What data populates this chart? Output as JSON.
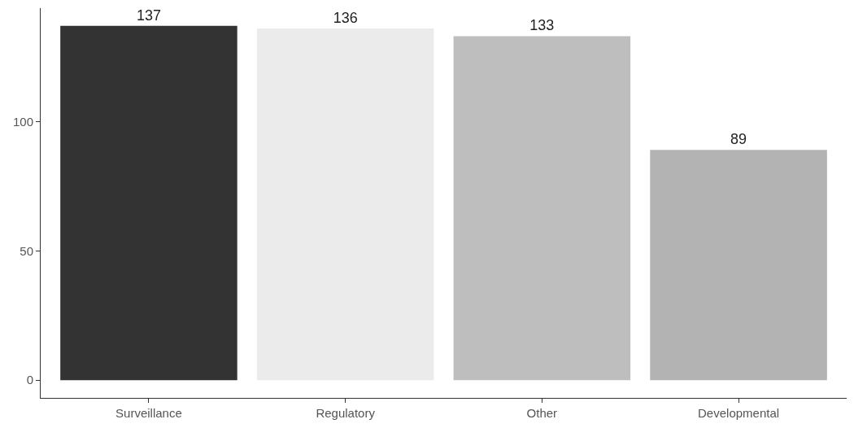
{
  "chart_data": {
    "type": "bar",
    "categories": [
      "Surveillance",
      "Regulatory",
      "Other",
      "Developmental"
    ],
    "values": [
      137,
      136,
      133,
      89
    ],
    "colors": [
      "#333333",
      "#ebebeb",
      "#bebebe",
      "#b3b3b3"
    ],
    "ylim": [
      -6.85,
      143.85
    ],
    "yticks": [
      0,
      50,
      100
    ],
    "data_labels": true
  }
}
